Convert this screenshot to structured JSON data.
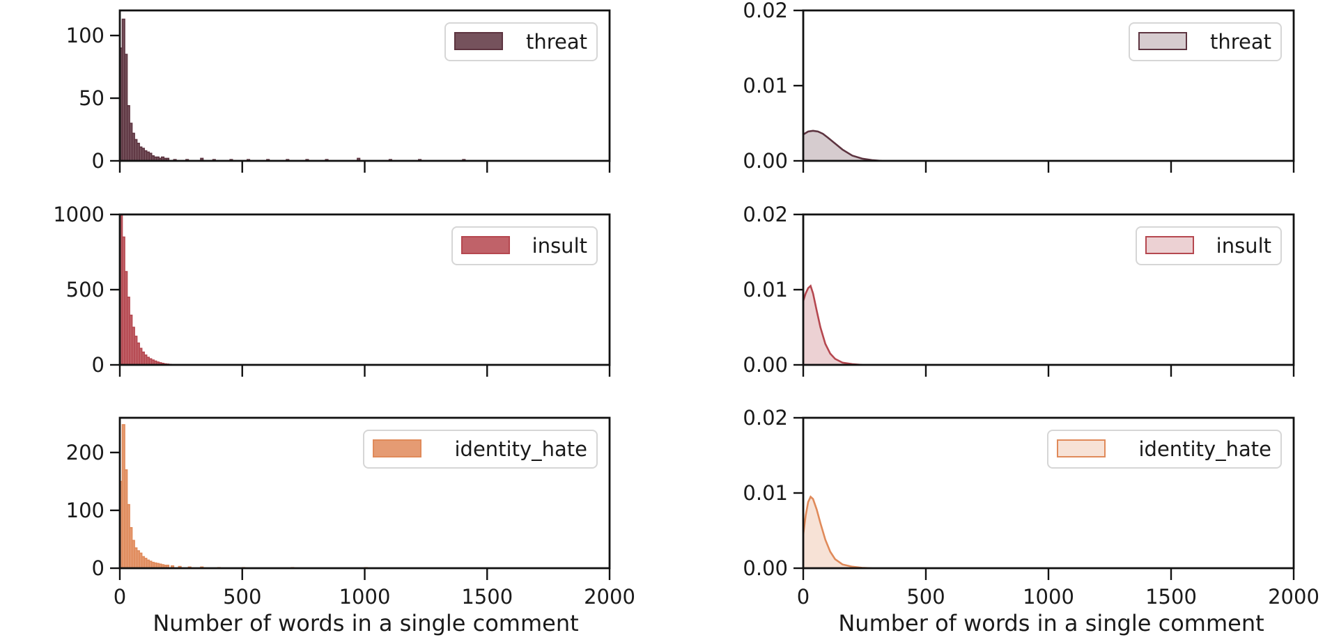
{
  "chart_data": [
    {
      "type": "histogram",
      "subplot": "left-top",
      "series": [
        {
          "name": "threat",
          "color": "#5d3440"
        }
      ],
      "xlim": [
        0,
        2000
      ],
      "ylim": [
        0,
        120
      ],
      "xticks": [
        0,
        500,
        1000,
        1500,
        2000
      ],
      "xtick_labels": [
        "",
        "",
        "",
        "",
        ""
      ],
      "yticks": [
        0,
        50,
        100
      ],
      "ytick_labels": [
        "0",
        "50",
        "100"
      ],
      "bin_width": 10,
      "bin_starts": [
        0,
        10,
        20,
        30,
        40,
        50,
        60,
        70,
        80,
        90,
        100,
        110,
        120,
        130,
        140,
        150,
        160,
        170,
        180,
        190,
        220,
        270,
        330,
        380,
        450,
        520,
        600,
        680,
        760,
        840,
        970,
        1100,
        1220,
        1400
      ],
      "counts": [
        90,
        113,
        85,
        44,
        30,
        22,
        17,
        14,
        11,
        10,
        8,
        7,
        6,
        4,
        3,
        3,
        2,
        3,
        2,
        2,
        1,
        1,
        2,
        1,
        1,
        1,
        1,
        1,
        1,
        1,
        2,
        1,
        1,
        1
      ],
      "legend_position": "upper right",
      "grid": false
    },
    {
      "type": "area",
      "subplot": "right-top",
      "series": [
        {
          "name": "threat",
          "color": "#5d3440"
        }
      ],
      "xlim": [
        0,
        2000
      ],
      "ylim": [
        0,
        0.02
      ],
      "xticks": [
        0,
        500,
        1000,
        1500,
        2000
      ],
      "xtick_labels": [
        "",
        "",
        "",
        "",
        ""
      ],
      "yticks": [
        0,
        0.01,
        0.02
      ],
      "ytick_labels": [
        "0.00",
        "0.01",
        "0.02"
      ],
      "x": [
        0,
        20,
        40,
        60,
        80,
        100,
        130,
        160,
        200,
        240,
        280,
        320
      ],
      "y": [
        0.0035,
        0.0039,
        0.004,
        0.0039,
        0.0036,
        0.0031,
        0.0023,
        0.0015,
        0.0007,
        0.0003,
        0.0001,
        0.0
      ],
      "legend_position": "upper right",
      "grid": false
    },
    {
      "type": "histogram",
      "subplot": "left-middle",
      "series": [
        {
          "name": "insult",
          "color": "#b5474f"
        }
      ],
      "xlim": [
        0,
        2000
      ],
      "ylim": [
        0,
        1000
      ],
      "xticks": [
        0,
        500,
        1000,
        1500,
        2000
      ],
      "xtick_labels": [
        "",
        "",
        "",
        "",
        ""
      ],
      "yticks": [
        0,
        500,
        1000
      ],
      "ytick_labels": [
        "0",
        "500",
        "1000"
      ],
      "bin_width": 10,
      "bin_starts": [
        0,
        10,
        20,
        30,
        40,
        50,
        60,
        70,
        80,
        90,
        100,
        110,
        120,
        130,
        140,
        150,
        160,
        170,
        180,
        190,
        200
      ],
      "counts": [
        1000,
        850,
        620,
        450,
        330,
        250,
        190,
        145,
        110,
        85,
        65,
        50,
        40,
        32,
        25,
        19,
        14,
        10,
        7,
        5,
        3
      ],
      "legend_position": "upper right",
      "grid": false
    },
    {
      "type": "area",
      "subplot": "right-middle",
      "series": [
        {
          "name": "insult",
          "color": "#b5474f"
        }
      ],
      "xlim": [
        0,
        2000
      ],
      "ylim": [
        0,
        0.02
      ],
      "xticks": [
        0,
        500,
        1000,
        1500,
        2000
      ],
      "xtick_labels": [
        "",
        "",
        "",
        "",
        ""
      ],
      "yticks": [
        0,
        0.01,
        0.02
      ],
      "ytick_labels": [
        "0.00",
        "0.01",
        "0.02"
      ],
      "x": [
        0,
        10,
        20,
        30,
        40,
        55,
        70,
        90,
        110,
        130,
        160,
        200,
        240
      ],
      "y": [
        0.0085,
        0.0095,
        0.0102,
        0.0105,
        0.0095,
        0.0072,
        0.005,
        0.0028,
        0.0015,
        0.0008,
        0.0003,
        0.0001,
        0.0
      ],
      "legend_position": "upper right",
      "grid": false
    },
    {
      "type": "histogram",
      "subplot": "left-bottom",
      "series": [
        {
          "name": "identity_hate",
          "color": "#e08a5a"
        }
      ],
      "xlim": [
        0,
        2000
      ],
      "ylim": [
        0,
        260
      ],
      "xticks": [
        0,
        500,
        1000,
        1500,
        2000
      ],
      "xtick_labels": [
        "0",
        "500",
        "1000",
        "1500",
        "2000"
      ],
      "yticks": [
        0,
        100,
        200
      ],
      "ytick_labels": [
        "0",
        "100",
        "200"
      ],
      "bin_width": 10,
      "bin_starts": [
        0,
        10,
        20,
        30,
        40,
        50,
        60,
        70,
        80,
        90,
        100,
        110,
        120,
        130,
        140,
        150,
        160,
        170,
        180,
        190,
        210,
        240,
        280,
        330,
        400,
        500,
        700,
        1000
      ],
      "counts": [
        150,
        248,
        170,
        110,
        70,
        48,
        35,
        30,
        26,
        20,
        17,
        14,
        12,
        10,
        9,
        8,
        7,
        6,
        5,
        5,
        4,
        3,
        2,
        2,
        1,
        1,
        1,
        1
      ],
      "legend_position": "upper right",
      "grid": false
    },
    {
      "type": "area",
      "subplot": "right-bottom",
      "series": [
        {
          "name": "identity_hate",
          "color": "#e08a5a"
        }
      ],
      "xlim": [
        0,
        2000
      ],
      "ylim": [
        0,
        0.02
      ],
      "xticks": [
        0,
        500,
        1000,
        1500,
        2000
      ],
      "xtick_labels": [
        "0",
        "500",
        "1000",
        "1500",
        "2000"
      ],
      "yticks": [
        0,
        0.01,
        0.02
      ],
      "ytick_labels": [
        "0.00",
        "0.01",
        "0.02"
      ],
      "x": [
        0,
        10,
        20,
        30,
        40,
        55,
        70,
        90,
        110,
        130,
        160,
        200,
        240,
        280
      ],
      "y": [
        0.0045,
        0.007,
        0.0088,
        0.0095,
        0.0092,
        0.0078,
        0.006,
        0.0038,
        0.0022,
        0.0012,
        0.0005,
        0.0002,
        5e-05,
        0.0
      ],
      "legend_position": "upper right",
      "grid": false
    }
  ],
  "xlabels": {
    "left": "Number of words in a single comment",
    "right": "Number of words in a single comment"
  }
}
